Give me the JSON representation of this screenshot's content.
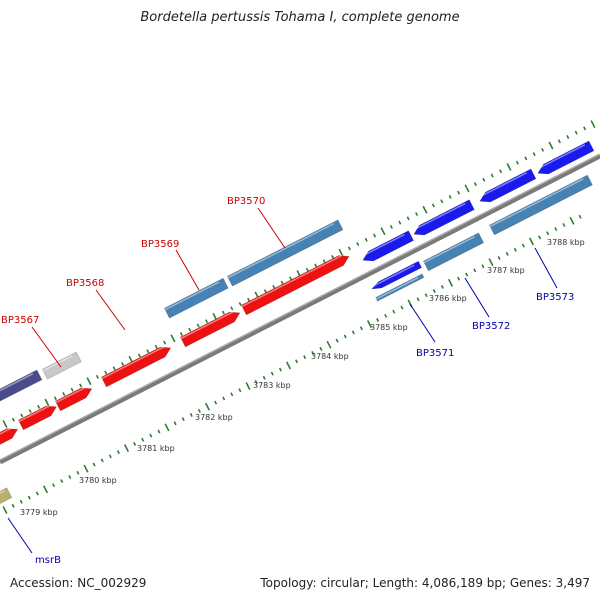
{
  "title": "Bordetella pertussis Tohama I, complete genome",
  "footer": {
    "accession": "Accession: NC_002929",
    "topology": "Topology: circular; Length: 4,086,189 bp; Genes: 3,497"
  },
  "colors": {
    "backbone": "#808080",
    "tick": "#2e7d32",
    "red_gene": "#ee1111",
    "steel_gene": "#4682b4",
    "blue_gene": "#1a1aee",
    "purple_gene": "#4b4b8c",
    "grey_gene": "#c8c8c8",
    "khaki_gene": "#b8b070",
    "forward_label": "#cc0000",
    "reverse_label": "#0000aa"
  },
  "kbp_labels": [
    "3779 kbp",
    "3780 kbp",
    "3781 kbp",
    "3782 kbp",
    "3783 kbp",
    "3784 kbp",
    "3785 kbp",
    "3786 kbp",
    "3787 kbp",
    "3788 kbp"
  ],
  "gene_labels": {
    "forward": [
      "BP3567",
      "BP3568",
      "BP3569",
      "BP3570"
    ],
    "reverse": [
      "BP3571",
      "BP3572",
      "BP3573",
      "msrB"
    ]
  }
}
